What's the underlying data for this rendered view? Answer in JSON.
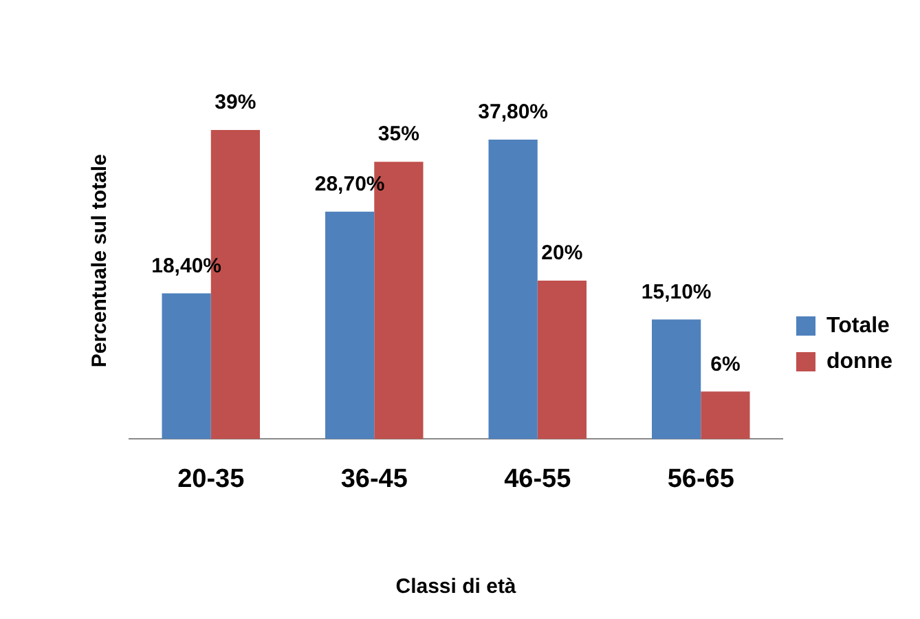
{
  "chart_data": {
    "type": "bar",
    "xlabel": "Classi di età",
    "ylabel": "Percentuale sul totale",
    "categories": [
      "20-35",
      "36-45",
      "46-55",
      "56-65"
    ],
    "series": [
      {
        "name": "Totale",
        "color": "#4f81bd",
        "values": [
          18.4,
          28.7,
          37.8,
          15.1
        ],
        "value_labels": [
          "18,40%",
          "28,70%",
          "37,80%",
          "15,10%"
        ]
      },
      {
        "name": "donne",
        "color": "#c0504d",
        "values": [
          39,
          35,
          20,
          6
        ],
        "value_labels": [
          "39%",
          "35%",
          "20%",
          "6%"
        ]
      }
    ],
    "legend": "right",
    "grid": false
  }
}
